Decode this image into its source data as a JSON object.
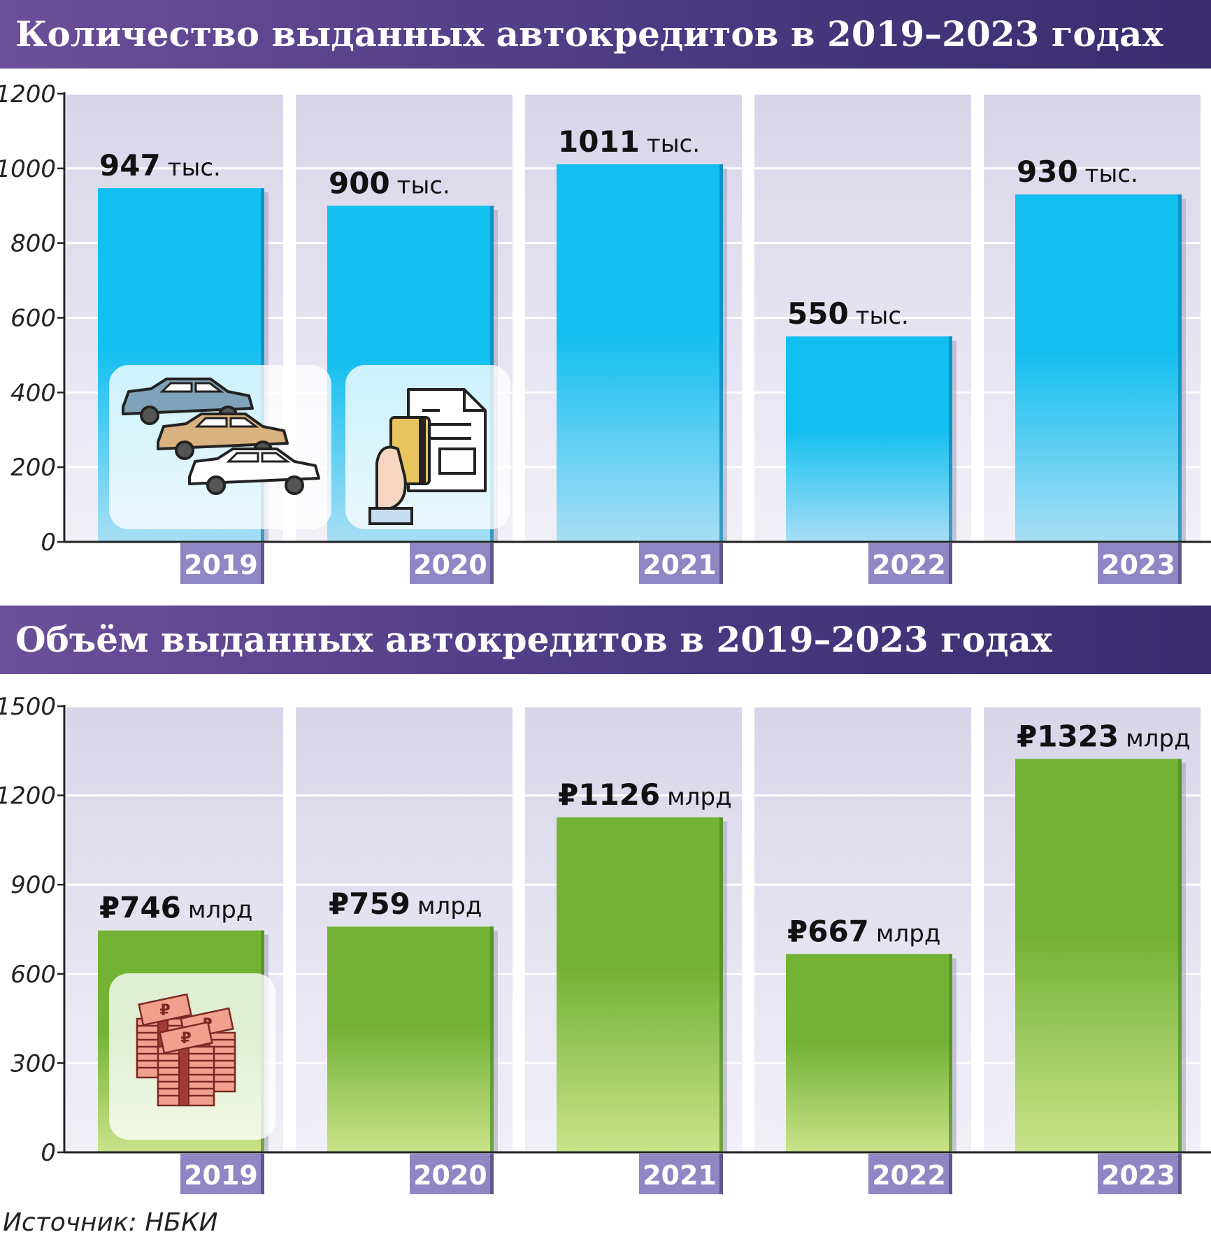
{
  "source": "Источник: НБКИ",
  "colors": {
    "banner": "#4a3a82",
    "bar_blue_top": "#12bff0",
    "bar_blue_bottom": "#a8def5",
    "bar_green_top": "#74b236",
    "bar_green_bottom": "#c9e38a",
    "panel": "#dcdaec",
    "year_tag": "#8f87c4"
  },
  "chart_data": [
    {
      "type": "bar",
      "title": "Количество выданных автокредитов в 2019–2023 годах",
      "categories": [
        "2019",
        "2020",
        "2021",
        "2022",
        "2023"
      ],
      "values": [
        947,
        900,
        1011,
        550,
        930
      ],
      "labels": [
        {
          "num": "947",
          "unit": "тыс."
        },
        {
          "num": "900",
          "unit": "тыс."
        },
        {
          "num": "1011",
          "unit": "тыс."
        },
        {
          "num": "550",
          "unit": "тыс."
        },
        {
          "num": "930",
          "unit": "тыс."
        }
      ],
      "ylim": [
        0,
        1200
      ],
      "yticks": [
        0,
        200,
        400,
        600,
        800,
        1000,
        1200
      ],
      "grid": true,
      "icons": [
        "cars-icon",
        "card-document-icon"
      ]
    },
    {
      "type": "bar",
      "title": "Объём выданных автокредитов в 2019–2023 годах",
      "categories": [
        "2019",
        "2020",
        "2021",
        "2022",
        "2023"
      ],
      "values": [
        746,
        759,
        1126,
        667,
        1323
      ],
      "labels": [
        {
          "num": "₽746",
          "unit": "млрд"
        },
        {
          "num": "₽759",
          "unit": "млрд"
        },
        {
          "num": "₽1126",
          "unit": "млрд"
        },
        {
          "num": "₽667",
          "unit": "млрд"
        },
        {
          "num": "₽1323",
          "unit": "млрд"
        }
      ],
      "ylim": [
        0,
        1500
      ],
      "yticks": [
        0,
        300,
        600,
        900,
        1200,
        1500
      ],
      "grid": true,
      "icons": [
        "money-stack-icon"
      ]
    }
  ]
}
